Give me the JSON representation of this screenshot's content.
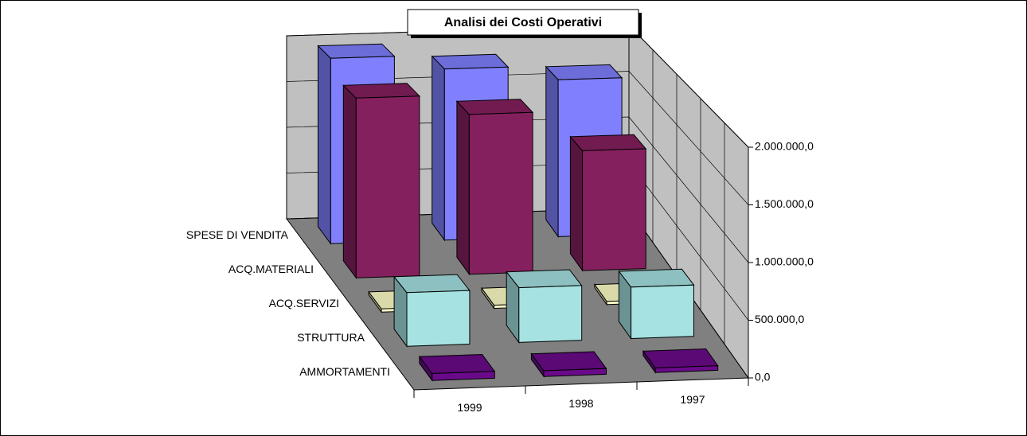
{
  "chart_data": {
    "type": "bar3d",
    "title": "Analisi dei Costi Operativi",
    "categories": [
      "1999",
      "1998",
      "1997"
    ],
    "series": [
      {
        "name": "SPESE DI VENDITA",
        "color": "#8080ff",
        "values": [
          1950000,
          1800000,
          1650000
        ]
      },
      {
        "name": "ACQ.MATERIALI",
        "color": "#85205f",
        "values": [
          1800000,
          1600000,
          1200000
        ]
      },
      {
        "name": "ACQ.SERVIZI",
        "color": "#ffffc8",
        "values": [
          30000,
          30000,
          30000
        ]
      },
      {
        "name": "STRUTTURA",
        "color": "#a6e2e2",
        "values": [
          490000,
          500000,
          470000
        ]
      },
      {
        "name": "AMMORTAMENTI",
        "color": "#6a0a8a",
        "values": [
          60000,
          50000,
          40000
        ]
      }
    ],
    "ylim": [
      0,
      2000000
    ],
    "yticks": [
      {
        "value": 0,
        "label": "0,0"
      },
      {
        "value": 500000,
        "label": "500.000,0"
      },
      {
        "value": 1000000,
        "label": "1.000.000,0"
      },
      {
        "value": 1500000,
        "label": "1.500.000,0"
      },
      {
        "value": 2000000,
        "label": "2.000.000,0"
      }
    ],
    "grid": true
  }
}
